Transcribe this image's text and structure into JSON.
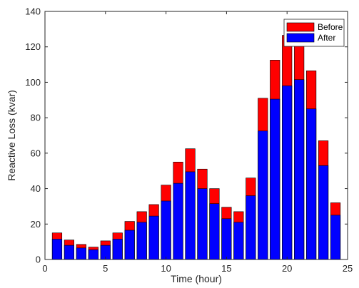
{
  "chart_data": {
    "type": "bar",
    "mode": "overlaid",
    "xlabel": "Time (hour)",
    "ylabel": "Reactive Loss (kvar)",
    "xlim": [
      0,
      25
    ],
    "ylim": [
      0,
      140
    ],
    "xticks": [
      0,
      5,
      10,
      15,
      20,
      25
    ],
    "yticks": [
      0,
      20,
      40,
      60,
      80,
      100,
      120,
      140
    ],
    "grid": false,
    "legend_position": "top-right",
    "categories": [
      1,
      2,
      3,
      4,
      5,
      6,
      7,
      8,
      9,
      10,
      11,
      12,
      13,
      14,
      15,
      16,
      17,
      18,
      19,
      20,
      21,
      22,
      23,
      24
    ],
    "series": [
      {
        "name": "Before",
        "color": "#ff0000",
        "values": [
          15.0,
          11.0,
          8.5,
          7.0,
          10.5,
          15.0,
          21.5,
          27.0,
          31.0,
          42.0,
          55.0,
          62.5,
          51.0,
          40.0,
          29.5,
          27.0,
          46.0,
          91.0,
          112.5,
          126.5,
          124.5,
          106.5,
          67.0,
          32.0
        ]
      },
      {
        "name": "After",
        "color": "#0000ff",
        "values": [
          11.5,
          8.0,
          6.5,
          5.5,
          8.0,
          11.5,
          16.5,
          21.0,
          24.5,
          33.0,
          43.0,
          49.5,
          40.0,
          31.5,
          23.0,
          21.0,
          36.0,
          72.5,
          90.5,
          98.0,
          101.5,
          85.0,
          53.0,
          25.0
        ]
      }
    ]
  }
}
